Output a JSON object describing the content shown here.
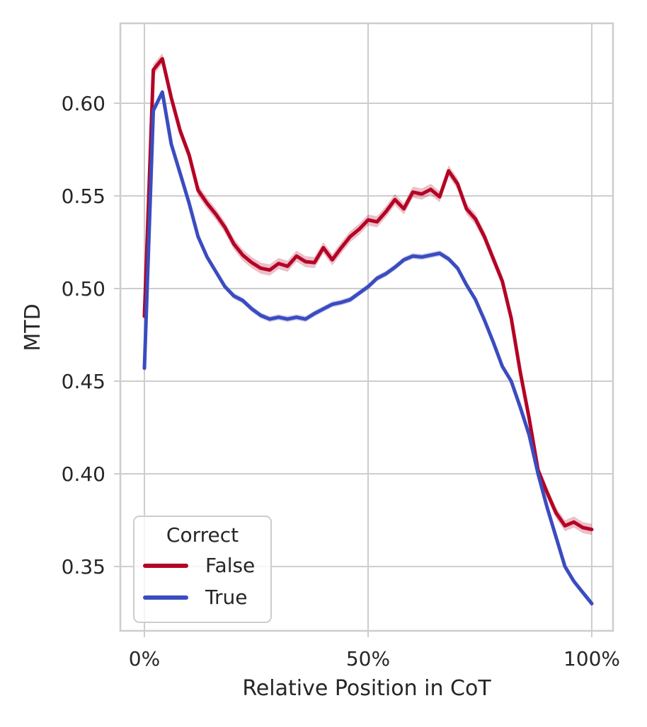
{
  "figure": {
    "background": "#ffffff",
    "text_color": "#262626",
    "grid_color": "#cdcdcd"
  },
  "chart_data": {
    "type": "line",
    "title": "",
    "xlabel": "Relative Position in CoT",
    "ylabel": "MTD",
    "grid": true,
    "legend": {
      "title": "Correct",
      "position": "lower left"
    },
    "xlim_percent": [
      -5.38,
      104.75
    ],
    "ylim": [
      0.3153,
      0.6431
    ],
    "xticks": {
      "values": [
        0,
        50,
        100
      ],
      "labels": [
        "0%",
        "50%",
        "100%"
      ]
    },
    "yticks": {
      "values": [
        0.35,
        0.4,
        0.45,
        0.5,
        0.55,
        0.6
      ],
      "labels": [
        "0.35",
        "0.40",
        "0.45",
        "0.50",
        "0.55",
        "0.60"
      ]
    },
    "x_percent": [
      0,
      2,
      4,
      6,
      8,
      10,
      12,
      14,
      16,
      18,
      20,
      22,
      24,
      26,
      28,
      30,
      32,
      34,
      36,
      38,
      40,
      42,
      44,
      46,
      48,
      50,
      52,
      54,
      56,
      58,
      60,
      62,
      64,
      66,
      68,
      70,
      72,
      74,
      76,
      78,
      80,
      82,
      84,
      86,
      88,
      90,
      92,
      94,
      96,
      98,
      100
    ],
    "series": [
      {
        "name": "False",
        "color": "#b40426",
        "band_halfwidth": 0.003,
        "values": [
          0.485,
          0.618,
          0.624,
          0.603,
          0.585,
          0.572,
          0.553,
          0.546,
          0.54,
          0.533,
          0.524,
          0.518,
          0.514,
          0.511,
          0.51,
          0.5135,
          0.512,
          0.5175,
          0.5145,
          0.514,
          0.522,
          0.5155,
          0.522,
          0.528,
          0.532,
          0.537,
          0.536,
          0.5415,
          0.548,
          0.543,
          0.552,
          0.551,
          0.5535,
          0.5495,
          0.5635,
          0.5565,
          0.543,
          0.5375,
          0.528,
          0.516,
          0.504,
          0.484,
          0.455,
          0.43,
          0.402,
          0.39,
          0.379,
          0.372,
          0.374,
          0.371,
          0.37
        ]
      },
      {
        "name": "True",
        "color": "#3b4cc0",
        "band_halfwidth": 0.0016,
        "values": [
          0.457,
          0.596,
          0.606,
          0.578,
          0.562,
          0.546,
          0.528,
          0.517,
          0.509,
          0.501,
          0.496,
          0.4935,
          0.489,
          0.4855,
          0.4835,
          0.4845,
          0.4835,
          0.4845,
          0.4835,
          0.4865,
          0.489,
          0.4915,
          0.4925,
          0.494,
          0.4975,
          0.501,
          0.5055,
          0.508,
          0.5115,
          0.5155,
          0.5175,
          0.517,
          0.518,
          0.519,
          0.516,
          0.511,
          0.502,
          0.494,
          0.483,
          0.471,
          0.458,
          0.45,
          0.436,
          0.421,
          0.4,
          0.382,
          0.366,
          0.35,
          0.342,
          0.336,
          0.33
        ]
      }
    ]
  }
}
